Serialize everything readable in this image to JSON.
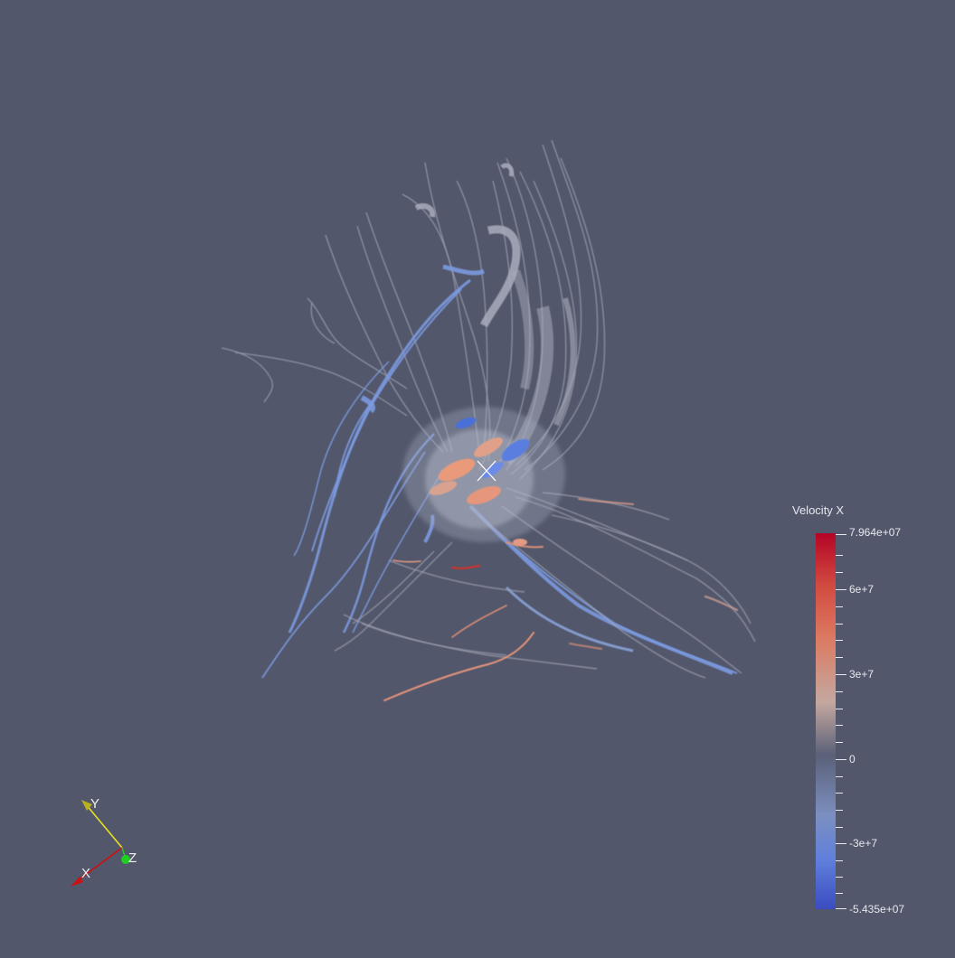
{
  "scalar_bar": {
    "title": "Velocity X",
    "max_label": "7.964e+07",
    "min_label": "-5.435e+07",
    "tick_labels": [
      "6e+7",
      "3e+7",
      "0",
      "-3e+7"
    ],
    "range": [
      -54350000,
      79640000
    ],
    "colors": {
      "low": "#3b4cc0",
      "mid": "#5a6078",
      "high": "#b40426"
    }
  },
  "orientation_axes": {
    "x_label": "X",
    "y_label": "Y",
    "z_label": "Z",
    "x_color": "#d01010",
    "y_color": "#e8e020",
    "z_color": "#20d020"
  },
  "background_color": "#52576b"
}
